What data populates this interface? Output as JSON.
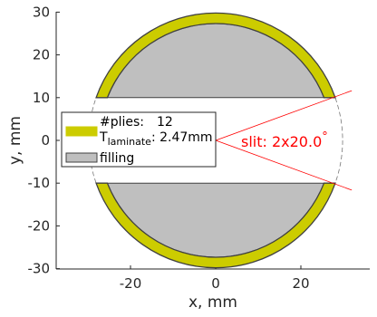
{
  "chart_data": {
    "type": "cross-section",
    "xlabel": "x, mm",
    "ylabel": "y, mm",
    "xlim": [
      -35,
      35
    ],
    "ylim": [
      -30,
      30
    ],
    "xticks": [
      -20,
      0,
      20
    ],
    "yticks": [
      -30,
      -20,
      -10,
      0,
      10,
      20,
      30
    ],
    "grid": false,
    "geometry": {
      "outer_radius": 29.8,
      "laminate_thickness": 2.47,
      "filling_half_gap": 10,
      "slit_half_angle_deg": 20,
      "slit_ray_length": 34
    },
    "legend": {
      "placement": "center-left",
      "plies_label": "#plies:",
      "plies_value": "12",
      "t_label": "T",
      "t_subscript": "laminate",
      "t_value": ": 2.47mm",
      "filling_label": "filling"
    },
    "annotation": {
      "text": "slit: 2x20.0",
      "degree": "°"
    },
    "colors": {
      "laminate": "#cccc00",
      "filling": "#bfbfbf",
      "outline": "#404040",
      "slit": "#ff0000",
      "dashed_circle": "#777777"
    }
  }
}
